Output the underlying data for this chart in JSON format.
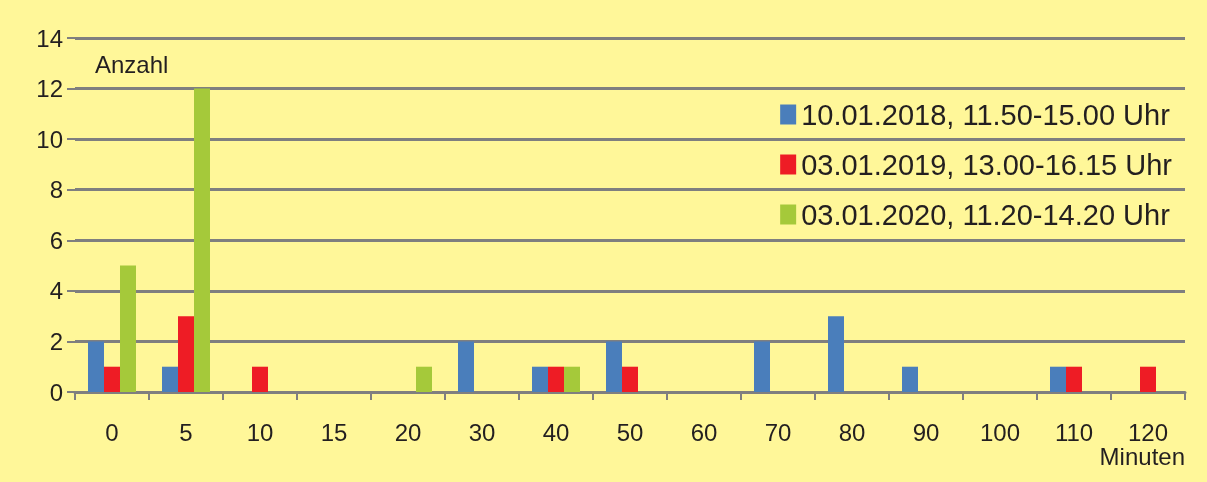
{
  "chart_data": {
    "type": "bar",
    "ylabel": "Anzahl",
    "xlabel": "Minuten",
    "categories": [
      "0",
      "5",
      "10",
      "15",
      "20",
      "30",
      "40",
      "50",
      "60",
      "70",
      "80",
      "90",
      "100",
      "110",
      "120"
    ],
    "series": [
      {
        "name": "10.01.2018, 11.50-15.00 Uhr",
        "color": "#4a7ebb",
        "values": [
          2,
          1,
          0,
          0,
          0,
          2,
          1,
          2,
          0,
          2,
          3,
          1,
          0,
          1,
          0
        ]
      },
      {
        "name": "03.01.2019, 13.00-16.15 Uhr",
        "color": "#ee1c25",
        "values": [
          1,
          3,
          1,
          0,
          0,
          0,
          1,
          1,
          0,
          0,
          0,
          0,
          0,
          1,
          1
        ]
      },
      {
        "name": "03.01.2020, 11.20-14.20 Uhr",
        "color": "#a5c93a",
        "values": [
          5,
          12,
          0,
          0,
          1,
          0,
          1,
          0,
          0,
          0,
          0,
          0,
          0,
          0,
          0
        ]
      }
    ],
    "ylim": [
      0,
      14
    ],
    "yticks": [
      0,
      2,
      4,
      6,
      8,
      10,
      12,
      14
    ],
    "grid": "y",
    "legend": "top right"
  }
}
